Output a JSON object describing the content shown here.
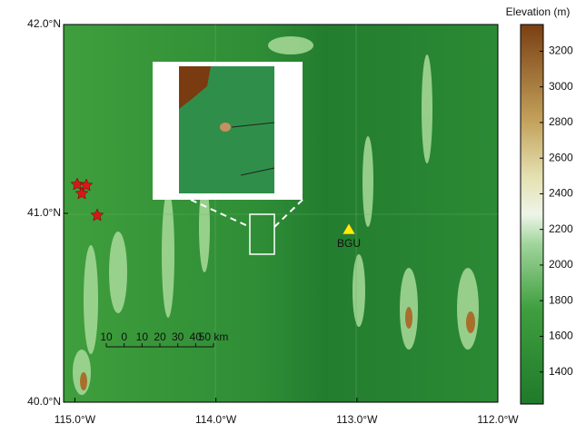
{
  "map": {
    "xlim": [
      -115.08,
      -112
    ],
    "ylim": [
      40,
      42
    ],
    "xticks": [
      {
        "value": -115,
        "label": "115.0°W"
      },
      {
        "value": -114,
        "label": "114.0°W"
      },
      {
        "value": -113,
        "label": "113.0°W"
      },
      {
        "value": -112,
        "label": "112.0°W"
      }
    ],
    "yticks": [
      {
        "value": 40,
        "label": "40.0°N"
      },
      {
        "value": 41,
        "label": "41.0°N"
      },
      {
        "value": 42,
        "label": "42.0°N"
      }
    ],
    "colorbar": {
      "title": "Elevation (m)",
      "lim": [
        1220,
        3350
      ],
      "ticks": [
        1400,
        1600,
        1800,
        2000,
        2200,
        2400,
        2600,
        2800,
        3000,
        3200
      ]
    },
    "station": "BGU",
    "scale_bar": [
      "10",
      "0",
      "10",
      "20",
      "30",
      "40",
      "50 km"
    ]
  }
}
